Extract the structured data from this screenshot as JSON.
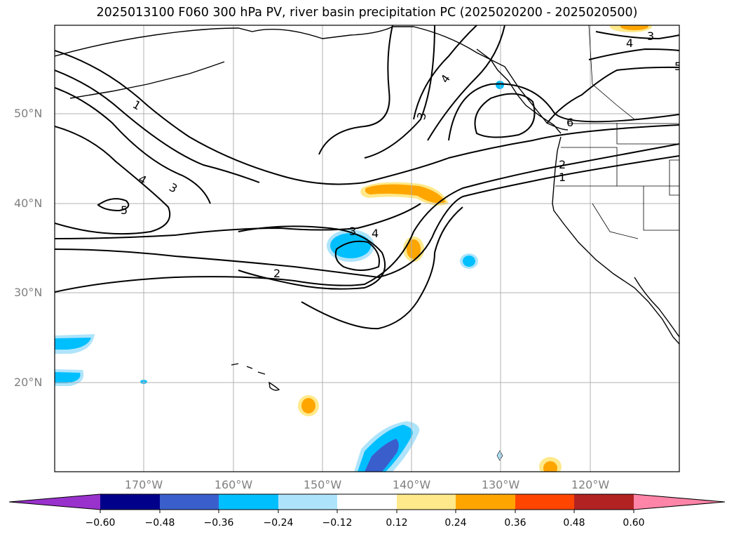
{
  "title": "2025013100 F060 300 hPa PV, river basin precipitation PC (2025020200 - 2025020500)",
  "lat_labels": [
    "50°N",
    "40°N",
    "30°N",
    "20°N"
  ],
  "lon_labels": [
    "170°W",
    "160°W",
    "150°W",
    "140°W",
    "130°W",
    "120°W"
  ],
  "contour_labels": [
    "1",
    "4",
    "3",
    "5",
    "2",
    "3",
    "4",
    "3",
    "4",
    "6",
    "2",
    "1",
    "4",
    "3",
    "5"
  ],
  "colorbar": {
    "ticks": [
      "−0.60",
      "−0.48",
      "−0.36",
      "−0.24",
      "−0.12",
      "0.12",
      "0.24",
      "0.36",
      "0.48",
      "0.60"
    ],
    "colors": [
      "#9932cc",
      "#00008b",
      "#3a5fcd",
      "#00bfff",
      "#aee4fb",
      "#ffffff",
      "#ffe98a",
      "#ffa500",
      "#ff4500",
      "#b22222",
      "#ff85a8",
      "#ff85a8"
    ]
  },
  "shading_colors": {
    "negative_weak": "#aee4fb",
    "negative_mid": "#00bfff",
    "negative_strong": "#3a5fcd",
    "positive_weak": "#ffe98a",
    "positive_mid": "#ffa500"
  }
}
